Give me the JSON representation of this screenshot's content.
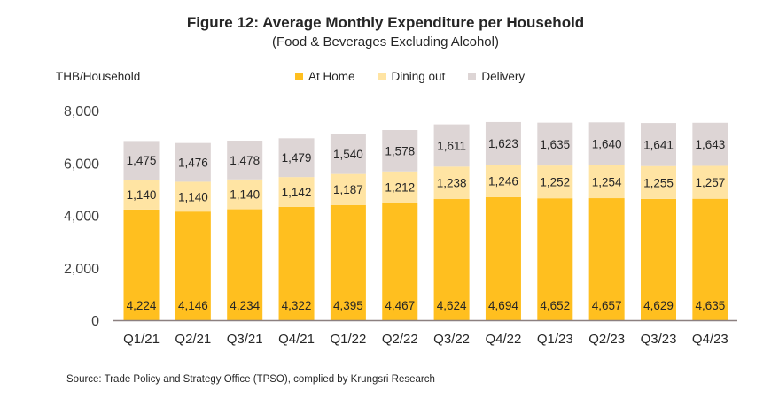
{
  "chart_data": {
    "type": "bar",
    "stacked": true,
    "title": "Figure 12: Average Monthly Expenditure per Household",
    "subtitle": "(Food & Beverages Excluding Alcohol)",
    "xlabel": "",
    "ylabel": "THB/Household",
    "ylim": [
      0,
      8000
    ],
    "yticks": [
      0,
      2000,
      4000,
      6000,
      8000
    ],
    "ytick_labels": [
      "0",
      "2,000",
      "4,000",
      "6,000",
      "8,000"
    ],
    "grid": false,
    "legend_position": "top-center",
    "categories": [
      "Q1/21",
      "Q2/21",
      "Q3/21",
      "Q4/21",
      "Q1/22",
      "Q2/22",
      "Q3/22",
      "Q4/22",
      "Q1/23",
      "Q2/23",
      "Q3/23",
      "Q4/23"
    ],
    "series": [
      {
        "name": "At Home",
        "color": "#FFBF1F",
        "values": [
          4224,
          4146,
          4234,
          4322,
          4395,
          4467,
          4624,
          4694,
          4652,
          4657,
          4629,
          4635
        ],
        "labels": [
          "4,224",
          "4,146",
          "4,234",
          "4,322",
          "4,395",
          "4,467",
          "4,624",
          "4,694",
          "4,652",
          "4,657",
          "4,629",
          "4,635"
        ]
      },
      {
        "name": "Dining out",
        "color": "#FFE4A3",
        "values": [
          1140,
          1140,
          1140,
          1142,
          1187,
          1212,
          1238,
          1246,
          1252,
          1254,
          1255,
          1257
        ],
        "labels": [
          "1,140",
          "1,140",
          "1,140",
          "1,142",
          "1,187",
          "1,212",
          "1,238",
          "1,246",
          "1,252",
          "1,254",
          "1,255",
          "1,257"
        ]
      },
      {
        "name": "Delivery",
        "color": "#DDD5D5",
        "values": [
          1475,
          1476,
          1478,
          1479,
          1540,
          1578,
          1611,
          1623,
          1635,
          1640,
          1641,
          1643
        ],
        "labels": [
          "1,475",
          "1,476",
          "1,478",
          "1,479",
          "1,540",
          "1,578",
          "1,611",
          "1,623",
          "1,635",
          "1,640",
          "1,641",
          "1,643"
        ]
      }
    ],
    "axis_color": "#8C8080",
    "source": "Source: Trade Policy and Strategy Office (TPSO), complied by Krungsri Research"
  }
}
